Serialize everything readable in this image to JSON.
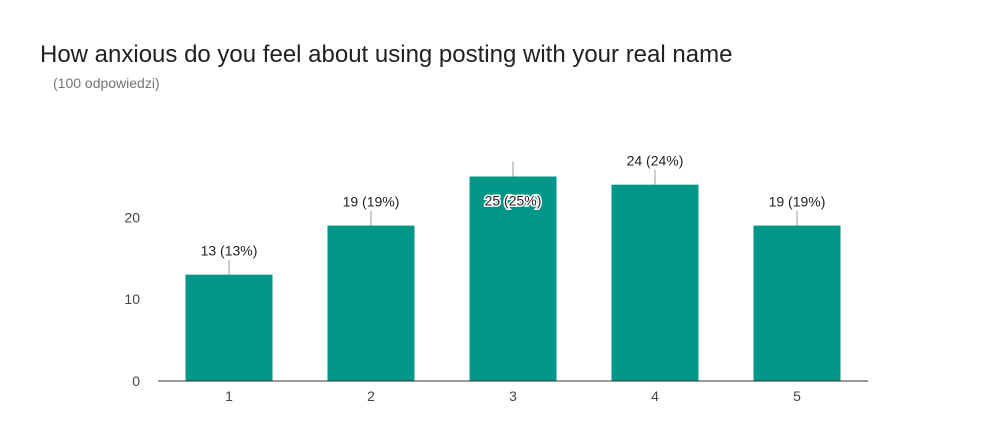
{
  "chart_data": {
    "type": "bar",
    "title": "How anxious do you feel about using posting with your real name",
    "subtitle": "(100 odpowiedzi)",
    "categories": [
      "1",
      "2",
      "3",
      "4",
      "5"
    ],
    "values": [
      13,
      19,
      25,
      24,
      19
    ],
    "data_labels": [
      "13 (13%)",
      "19 (19%)",
      "25 (25%)",
      "24 (24%)",
      "19 (19%)"
    ],
    "yticks": [
      0,
      10,
      20
    ],
    "ylim": [
      0,
      26
    ],
    "xlabel": "",
    "ylabel": "",
    "grid": false,
    "bar_color": "#009688"
  }
}
